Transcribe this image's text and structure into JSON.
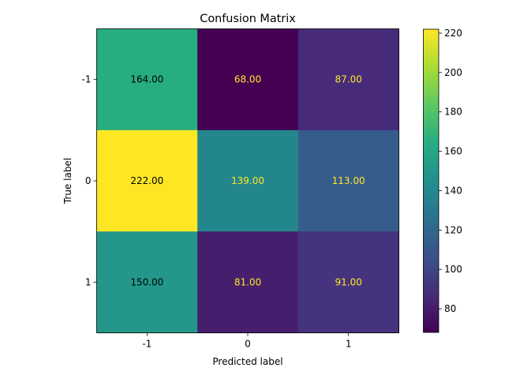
{
  "chart_data": {
    "type": "heatmap",
    "title": "Confusion Matrix",
    "xlabel": "Predicted label",
    "ylabel": "True label",
    "x_categories": [
      "-1",
      "0",
      "1"
    ],
    "y_categories": [
      "-1",
      "0",
      "1"
    ],
    "values": [
      [
        164,
        68,
        87
      ],
      [
        222,
        139,
        113
      ],
      [
        150,
        81,
        91
      ]
    ],
    "value_labels": [
      [
        "164.00",
        "68.00",
        "87.00"
      ],
      [
        "222.00",
        "139.00",
        "113.00"
      ],
      [
        "150.00",
        "81.00",
        "91.00"
      ]
    ],
    "colormap": "viridis",
    "vmin": 68,
    "vmax": 222,
    "colorbar_ticks": [
      80,
      100,
      120,
      140,
      160,
      180,
      200,
      220
    ],
    "colorbar_tick_labels": [
      "80",
      "100",
      "120",
      "140",
      "160",
      "180",
      "200",
      "220"
    ],
    "grid": false,
    "text_color_dark": "#000000",
    "text_color_light": "#fde725"
  }
}
